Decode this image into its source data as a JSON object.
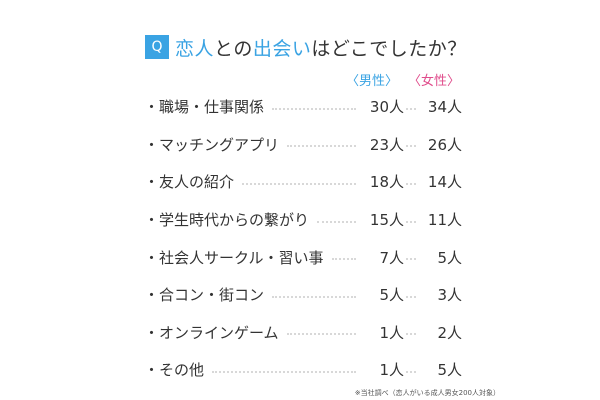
{
  "question": {
    "badge": "Q",
    "part1": "恋人",
    "part2": "との",
    "part3": "出会い",
    "part4": "はどこでしたか？"
  },
  "legend": {
    "male": "〈男性〉",
    "female": "〈女性〉"
  },
  "chart_data": {
    "type": "table",
    "title": "恋人との出会いはどこでしたか？",
    "series": [
      {
        "name": "男性",
        "values": [
          30,
          23,
          18,
          15,
          7,
          5,
          1,
          1
        ]
      },
      {
        "name": "女性",
        "values": [
          34,
          26,
          14,
          11,
          5,
          3,
          2,
          5
        ]
      }
    ],
    "categories": [
      "職場・仕事関係",
      "マッチングアプリ",
      "友人の紹介",
      "学生時代からの繋がり",
      "社会人サークル・習い事",
      "合コン・街コン",
      "オンラインゲーム",
      "その他"
    ],
    "unit": "人",
    "colors": {
      "male": "#3aa3e3",
      "female": "#e04d8c",
      "accent": "#3aa3e3"
    }
  },
  "rows": [
    {
      "label": "・職場・仕事関係",
      "male": "30人",
      "female": "34人"
    },
    {
      "label": "・マッチングアプリ",
      "male": "23人",
      "female": "26人"
    },
    {
      "label": "・友人の紹介",
      "male": "18人",
      "female": "14人"
    },
    {
      "label": "・学生時代からの繋がり",
      "male": "15人",
      "female": "11人"
    },
    {
      "label": "・社会人サークル・習い事",
      "male": "7人",
      "female": "5人"
    },
    {
      "label": "・合コン・街コン",
      "male": "5人",
      "female": "3人"
    },
    {
      "label": "・オンラインゲーム",
      "male": "1人",
      "female": "2人"
    },
    {
      "label": "・その他",
      "male": "1人",
      "female": "5人"
    }
  ],
  "footnote": "※当社調べ（恋人がいる成人男女200人対象）"
}
